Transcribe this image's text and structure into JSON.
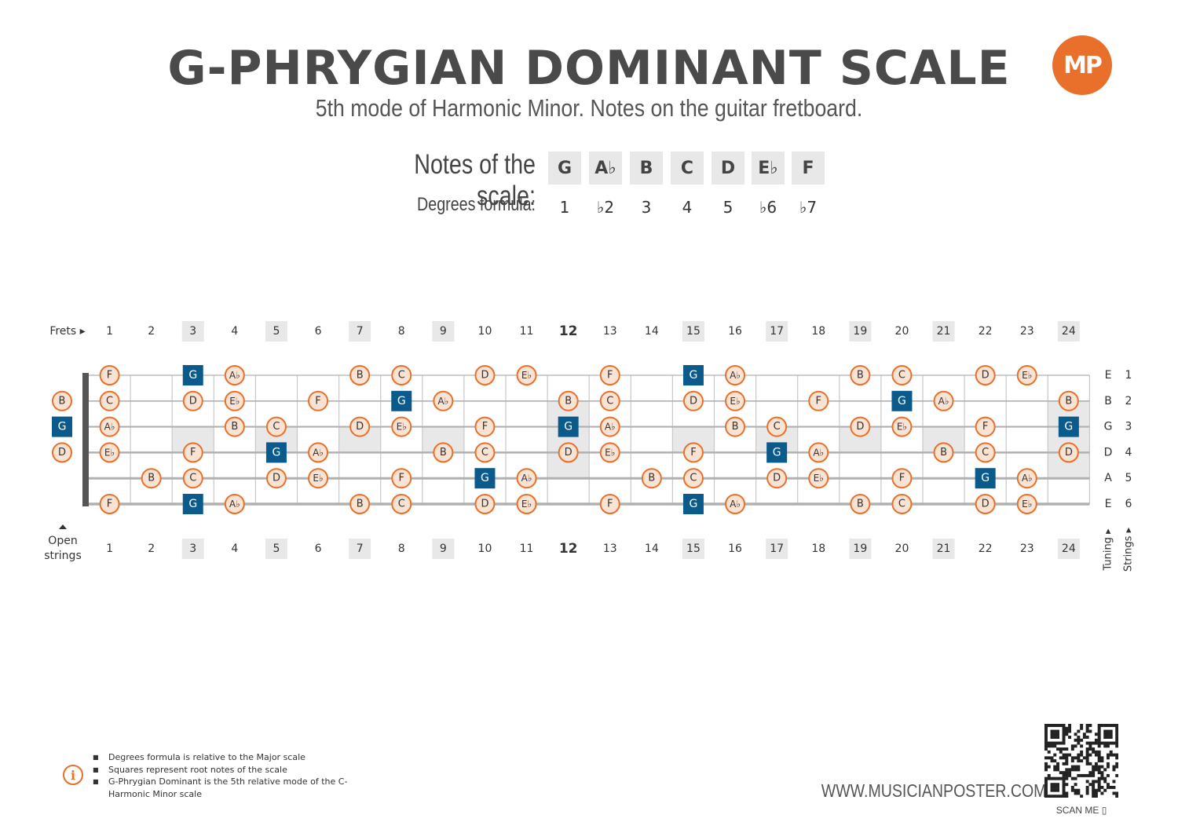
{
  "title": "G-PHRYGIAN DOMINANT SCALE",
  "subtitle": "5th mode of Harmonic Minor. Notes on the guitar fretboard.",
  "logo_text": "MP",
  "scale": {
    "notes_label": "Notes of the scale:",
    "degrees_label": "Degrees formula:",
    "notes": [
      "G",
      "A♭",
      "B",
      "C",
      "D",
      "E♭",
      "F"
    ],
    "degrees": [
      "1",
      "♭2",
      "3",
      "4",
      "5",
      "♭6",
      "♭7"
    ]
  },
  "fretboard": {
    "frets_label": "Frets ▸",
    "open_strings_label": "Open strings",
    "tuning_label": "Tuning ▸",
    "strings_label": "Strings ▸",
    "fret_numbers": [
      "1",
      "2",
      "3",
      "4",
      "5",
      "6",
      "7",
      "8",
      "9",
      "10",
      "11",
      "12",
      "13",
      "14",
      "15",
      "16",
      "17",
      "18",
      "19",
      "20",
      "21",
      "22",
      "23",
      "24"
    ],
    "marker_frets": [
      3,
      5,
      7,
      9,
      12,
      15,
      17,
      19,
      21,
      24
    ],
    "double_marker_frets": [
      12,
      24
    ],
    "root_note": "G",
    "strings": [
      {
        "number": "1",
        "tuning": "E",
        "open": "",
        "notes": [
          "F",
          "",
          "G",
          "A♭",
          "",
          "",
          "B",
          "C",
          "",
          "D",
          "E♭",
          "",
          "F",
          "",
          "G",
          "A♭",
          "",
          "",
          "B",
          "C",
          "",
          "D",
          "E♭",
          ""
        ]
      },
      {
        "number": "2",
        "tuning": "B",
        "open": "B",
        "notes": [
          "C",
          "",
          "D",
          "E♭",
          "",
          "F",
          "",
          "G",
          "A♭",
          "",
          "",
          "B",
          "C",
          "",
          "D",
          "E♭",
          "",
          "F",
          "",
          "G",
          "A♭",
          "",
          "",
          "B"
        ]
      },
      {
        "number": "3",
        "tuning": "G",
        "open": "G",
        "notes": [
          "A♭",
          "",
          "",
          "B",
          "C",
          "",
          "D",
          "E♭",
          "",
          "F",
          "",
          "G",
          "A♭",
          "",
          "",
          "B",
          "C",
          "",
          "D",
          "E♭",
          "",
          "F",
          "",
          "G"
        ]
      },
      {
        "number": "4",
        "tuning": "D",
        "open": "D",
        "notes": [
          "E♭",
          "",
          "F",
          "",
          "G",
          "A♭",
          "",
          "",
          "B",
          "C",
          "",
          "D",
          "E♭",
          "",
          "F",
          "",
          "G",
          "A♭",
          "",
          "",
          "B",
          "C",
          "",
          "D"
        ]
      },
      {
        "number": "5",
        "tuning": "A",
        "open": "",
        "notes": [
          "",
          "B",
          "C",
          "",
          "D",
          "E♭",
          "",
          "F",
          "",
          "G",
          "A♭",
          "",
          "",
          "B",
          "C",
          "",
          "D",
          "E♭",
          "",
          "F",
          "",
          "G",
          "A♭",
          ""
        ]
      },
      {
        "number": "6",
        "tuning": "E",
        "open": "",
        "notes": [
          "F",
          "",
          "G",
          "A♭",
          "",
          "",
          "B",
          "C",
          "",
          "D",
          "E♭",
          "",
          "F",
          "",
          "G",
          "A♭",
          "",
          "",
          "B",
          "C",
          "",
          "D",
          "E♭",
          ""
        ]
      }
    ]
  },
  "info": {
    "items": [
      "Degrees formula is relative to the Major scale",
      "Squares represent root notes of the scale",
      "G-Phrygian Dominant is the 5th relative mode of the C-Harmonic Minor scale"
    ]
  },
  "website": "WWW.MUSICIANPOSTER.COM",
  "scan_label": "SCAN ME ▯",
  "colors": {
    "accent": "#e8702a",
    "note_fill": "#fbe3d3",
    "root_fill": "#0b5a8c",
    "marker_bg": "#e8e8e8",
    "text": "#333333"
  }
}
